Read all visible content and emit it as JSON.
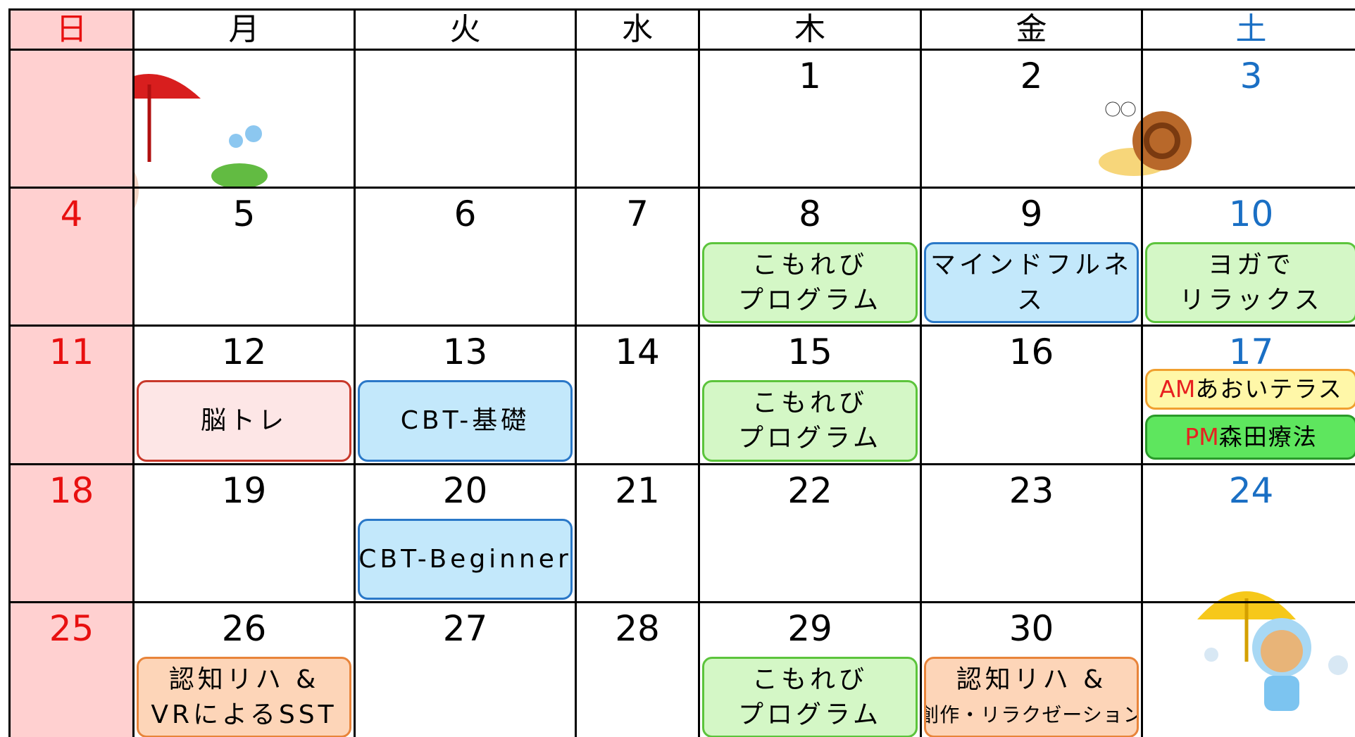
{
  "weekdays": [
    "日",
    "月",
    "火",
    "水",
    "木",
    "金",
    "土"
  ],
  "weeks": [
    [
      null,
      null,
      null,
      null,
      {
        "day": "1"
      },
      {
        "day": "2"
      },
      {
        "day": "3"
      }
    ],
    [
      {
        "day": "4"
      },
      {
        "day": "5"
      },
      {
        "day": "6"
      },
      {
        "day": "7"
      },
      {
        "day": "8",
        "events": [
          {
            "lines": [
              "こもれび",
              "プログラム"
            ],
            "fill": "#d4f7c6",
            "border": "#5cc43c"
          }
        ]
      },
      {
        "day": "9",
        "events": [
          {
            "lines": [
              "マインドフルネ",
              "ス"
            ],
            "fill": "#c3e8fb",
            "border": "#2a78c8"
          }
        ]
      },
      {
        "day": "10",
        "events": [
          {
            "lines": [
              "ヨガで",
              "リラックス"
            ],
            "fill": "#d4f7c6",
            "border": "#5cc43c"
          }
        ]
      }
    ],
    [
      {
        "day": "11"
      },
      {
        "day": "12",
        "events": [
          {
            "lines": [
              "脳トレ"
            ],
            "fill": "#fde6e6",
            "border": "#c8382a"
          }
        ]
      },
      {
        "day": "13",
        "events": [
          {
            "lines": [
              "CBT-基礎"
            ],
            "fill": "#c3e8fb",
            "border": "#2a78c8"
          }
        ]
      },
      {
        "day": "14"
      },
      {
        "day": "15",
        "events": [
          {
            "lines": [
              "こもれび",
              "プログラム"
            ],
            "fill": "#d4f7c6",
            "border": "#5cc43c"
          }
        ]
      },
      {
        "day": "16"
      },
      {
        "day": "17",
        "events": [
          {
            "tag": "AM",
            "lines": [
              "あおいテラス"
            ],
            "fill": "#fff7a8",
            "border": "#f0a030"
          },
          {
            "tag": "PM",
            "lines": [
              "森田療法"
            ],
            "fill": "#5ee65e",
            "border": "#2a9a2a"
          }
        ]
      }
    ],
    [
      {
        "day": "18"
      },
      {
        "day": "19"
      },
      {
        "day": "20",
        "events": [
          {
            "lines": [
              "CBT-Beginner"
            ],
            "fill": "#c3e8fb",
            "border": "#2a78c8"
          }
        ]
      },
      {
        "day": "21"
      },
      {
        "day": "22"
      },
      {
        "day": "23"
      },
      {
        "day": "24"
      }
    ],
    [
      {
        "day": "25"
      },
      {
        "day": "26",
        "events": [
          {
            "lines": [
              "認知リハ &",
              "VRによるSST"
            ],
            "fill": "#fdd5b8",
            "border": "#e8843a"
          }
        ]
      },
      {
        "day": "27"
      },
      {
        "day": "28"
      },
      {
        "day": "29",
        "events": [
          {
            "lines": [
              "こもれび",
              "プログラム"
            ],
            "fill": "#d4f7c6",
            "border": "#5cc43c"
          }
        ]
      },
      {
        "day": "30",
        "events": [
          {
            "lines": [
              "認知リハ &",
              "創作・リラクゼーション"
            ],
            "fill": "#fdd5b8",
            "border": "#e8843a"
          }
        ]
      },
      null
    ]
  ]
}
